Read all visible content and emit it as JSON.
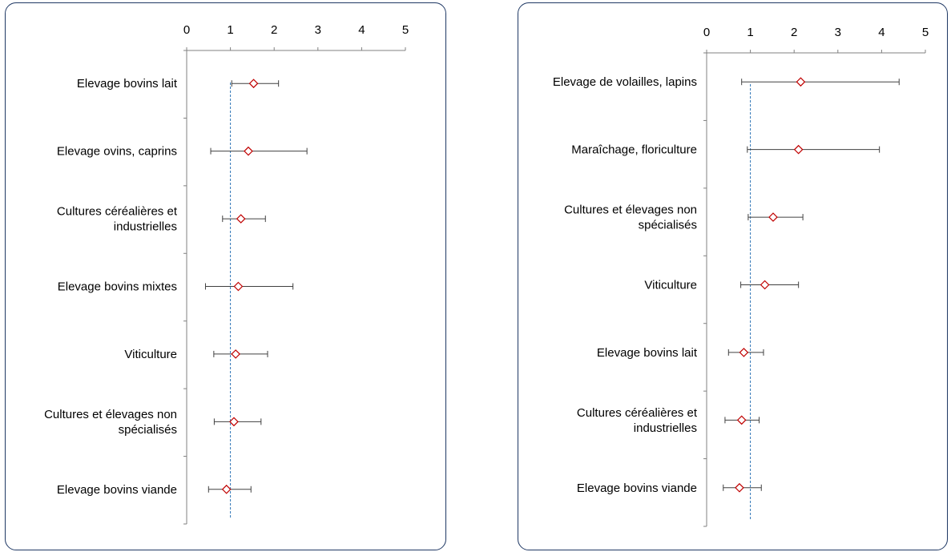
{
  "chart_data": [
    {
      "type": "scatter",
      "title": "",
      "xlabel": "",
      "ylabel": "",
      "xlim": [
        0,
        5
      ],
      "xticks": [
        0,
        1,
        2,
        3,
        4,
        5
      ],
      "reference_x": 1,
      "grid": false,
      "categories": [
        "Elevage bovins lait",
        "Elevage ovins, caprins",
        "Cultures céréalières et industrielles",
        "Elevage bovins mixtes",
        "Viticulture",
        "Cultures et élevages non spécialisés",
        "Elevage bovins viande"
      ],
      "estimate": [
        1.53,
        1.41,
        1.24,
        1.18,
        1.12,
        1.08,
        0.91
      ],
      "ci_low": [
        1.03,
        0.55,
        0.82,
        0.43,
        0.62,
        0.63,
        0.5
      ],
      "ci_high": [
        2.1,
        2.75,
        1.8,
        2.43,
        1.85,
        1.7,
        1.47
      ],
      "colors": {
        "marker": "#c00000",
        "reference_line": "#2e75b6",
        "axis": "#808080",
        "error_bar": "#404040"
      }
    },
    {
      "type": "scatter",
      "title": "",
      "xlabel": "",
      "ylabel": "",
      "xlim": [
        0,
        5
      ],
      "xticks": [
        0,
        1,
        2,
        3,
        4,
        5
      ],
      "reference_x": 1,
      "grid": false,
      "categories": [
        "Elevage de volailles, lapins",
        "Maraîchage, floriculture",
        "Cultures et élevages non spécialisés",
        "Viticulture",
        "Elevage bovins lait",
        "Cultures céréalières et industrielles",
        "Elevage bovins viande"
      ],
      "estimate": [
        2.15,
        2.1,
        1.52,
        1.33,
        0.85,
        0.8,
        0.75
      ],
      "ci_low": [
        0.8,
        0.93,
        0.95,
        0.78,
        0.5,
        0.42,
        0.38
      ],
      "ci_high": [
        4.4,
        3.95,
        2.2,
        2.1,
        1.3,
        1.2,
        1.25
      ],
      "colors": {
        "marker": "#c00000",
        "reference_line": "#2e75b6",
        "axis": "#808080",
        "error_bar": "#404040"
      }
    }
  ]
}
